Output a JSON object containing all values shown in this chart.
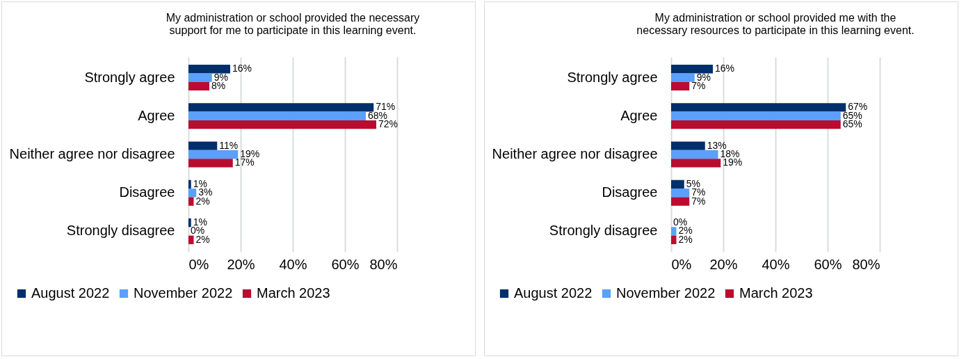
{
  "chart_data": [
    {
      "type": "bar",
      "orientation": "horizontal",
      "title": "My administration or school provided the necessary\nsupport for me to participate in this learning event.",
      "categories": [
        "Strongly agree",
        "Agree",
        "Neither agree nor disagree",
        "Disagree",
        "Strongly disagree"
      ],
      "series": [
        {
          "name": "August 2022",
          "color": "#002f6c",
          "values": [
            16,
            71,
            11,
            1,
            1
          ],
          "value_labels": [
            "16%",
            "71%",
            "11%",
            "1%",
            "1%"
          ]
        },
        {
          "name": "November 2022",
          "color": "#5ba0fa",
          "values": [
            9,
            68,
            19,
            3,
            0
          ],
          "value_labels": [
            "9%",
            "68%",
            "19%",
            "3%",
            "0%"
          ]
        },
        {
          "name": "March 2023",
          "color": "#ba0c2f",
          "values": [
            8,
            72,
            17,
            2,
            2
          ],
          "value_labels": [
            "8%",
            "72%",
            "17%",
            "2%",
            "2%"
          ]
        }
      ],
      "xlim": [
        0,
        80
      ],
      "xticks": [
        {
          "value": 0,
          "label": "0%"
        },
        {
          "value": 20,
          "label": "20%"
        },
        {
          "value": 40,
          "label": "40%"
        },
        {
          "value": 60,
          "label": "60%"
        },
        {
          "value": 80,
          "label": "80%"
        }
      ],
      "grid": "x",
      "legend": "bottom"
    },
    {
      "type": "bar",
      "orientation": "horizontal",
      "title": "My administration or school provided me with the\nnecessary resources to participate in this learning event.",
      "categories": [
        "Strongly agree",
        "Agree",
        "Neither agree nor disagree",
        "Disagree",
        "Strongly disagree"
      ],
      "series": [
        {
          "name": "August 2022",
          "color": "#002f6c",
          "values": [
            16,
            67,
            13,
            5,
            0
          ],
          "value_labels": [
            "16%",
            "67%",
            "13%",
            "5%",
            "0%"
          ]
        },
        {
          "name": "November 2022",
          "color": "#5ba0fa",
          "values": [
            9,
            65,
            18,
            7,
            2
          ],
          "value_labels": [
            "9%",
            "65%",
            "18%",
            "7%",
            "2%"
          ]
        },
        {
          "name": "March 2023",
          "color": "#ba0c2f",
          "values": [
            7,
            65,
            19,
            7,
            2
          ],
          "value_labels": [
            "7%",
            "65%",
            "19%",
            "7%",
            "2%"
          ]
        }
      ],
      "xlim": [
        0,
        80
      ],
      "xticks": [
        {
          "value": 0,
          "label": "0%"
        },
        {
          "value": 20,
          "label": "20%"
        },
        {
          "value": 40,
          "label": "40%"
        },
        {
          "value": 60,
          "label": "60%"
        },
        {
          "value": 80,
          "label": "80%"
        }
      ],
      "grid": "x",
      "legend": "bottom"
    }
  ]
}
